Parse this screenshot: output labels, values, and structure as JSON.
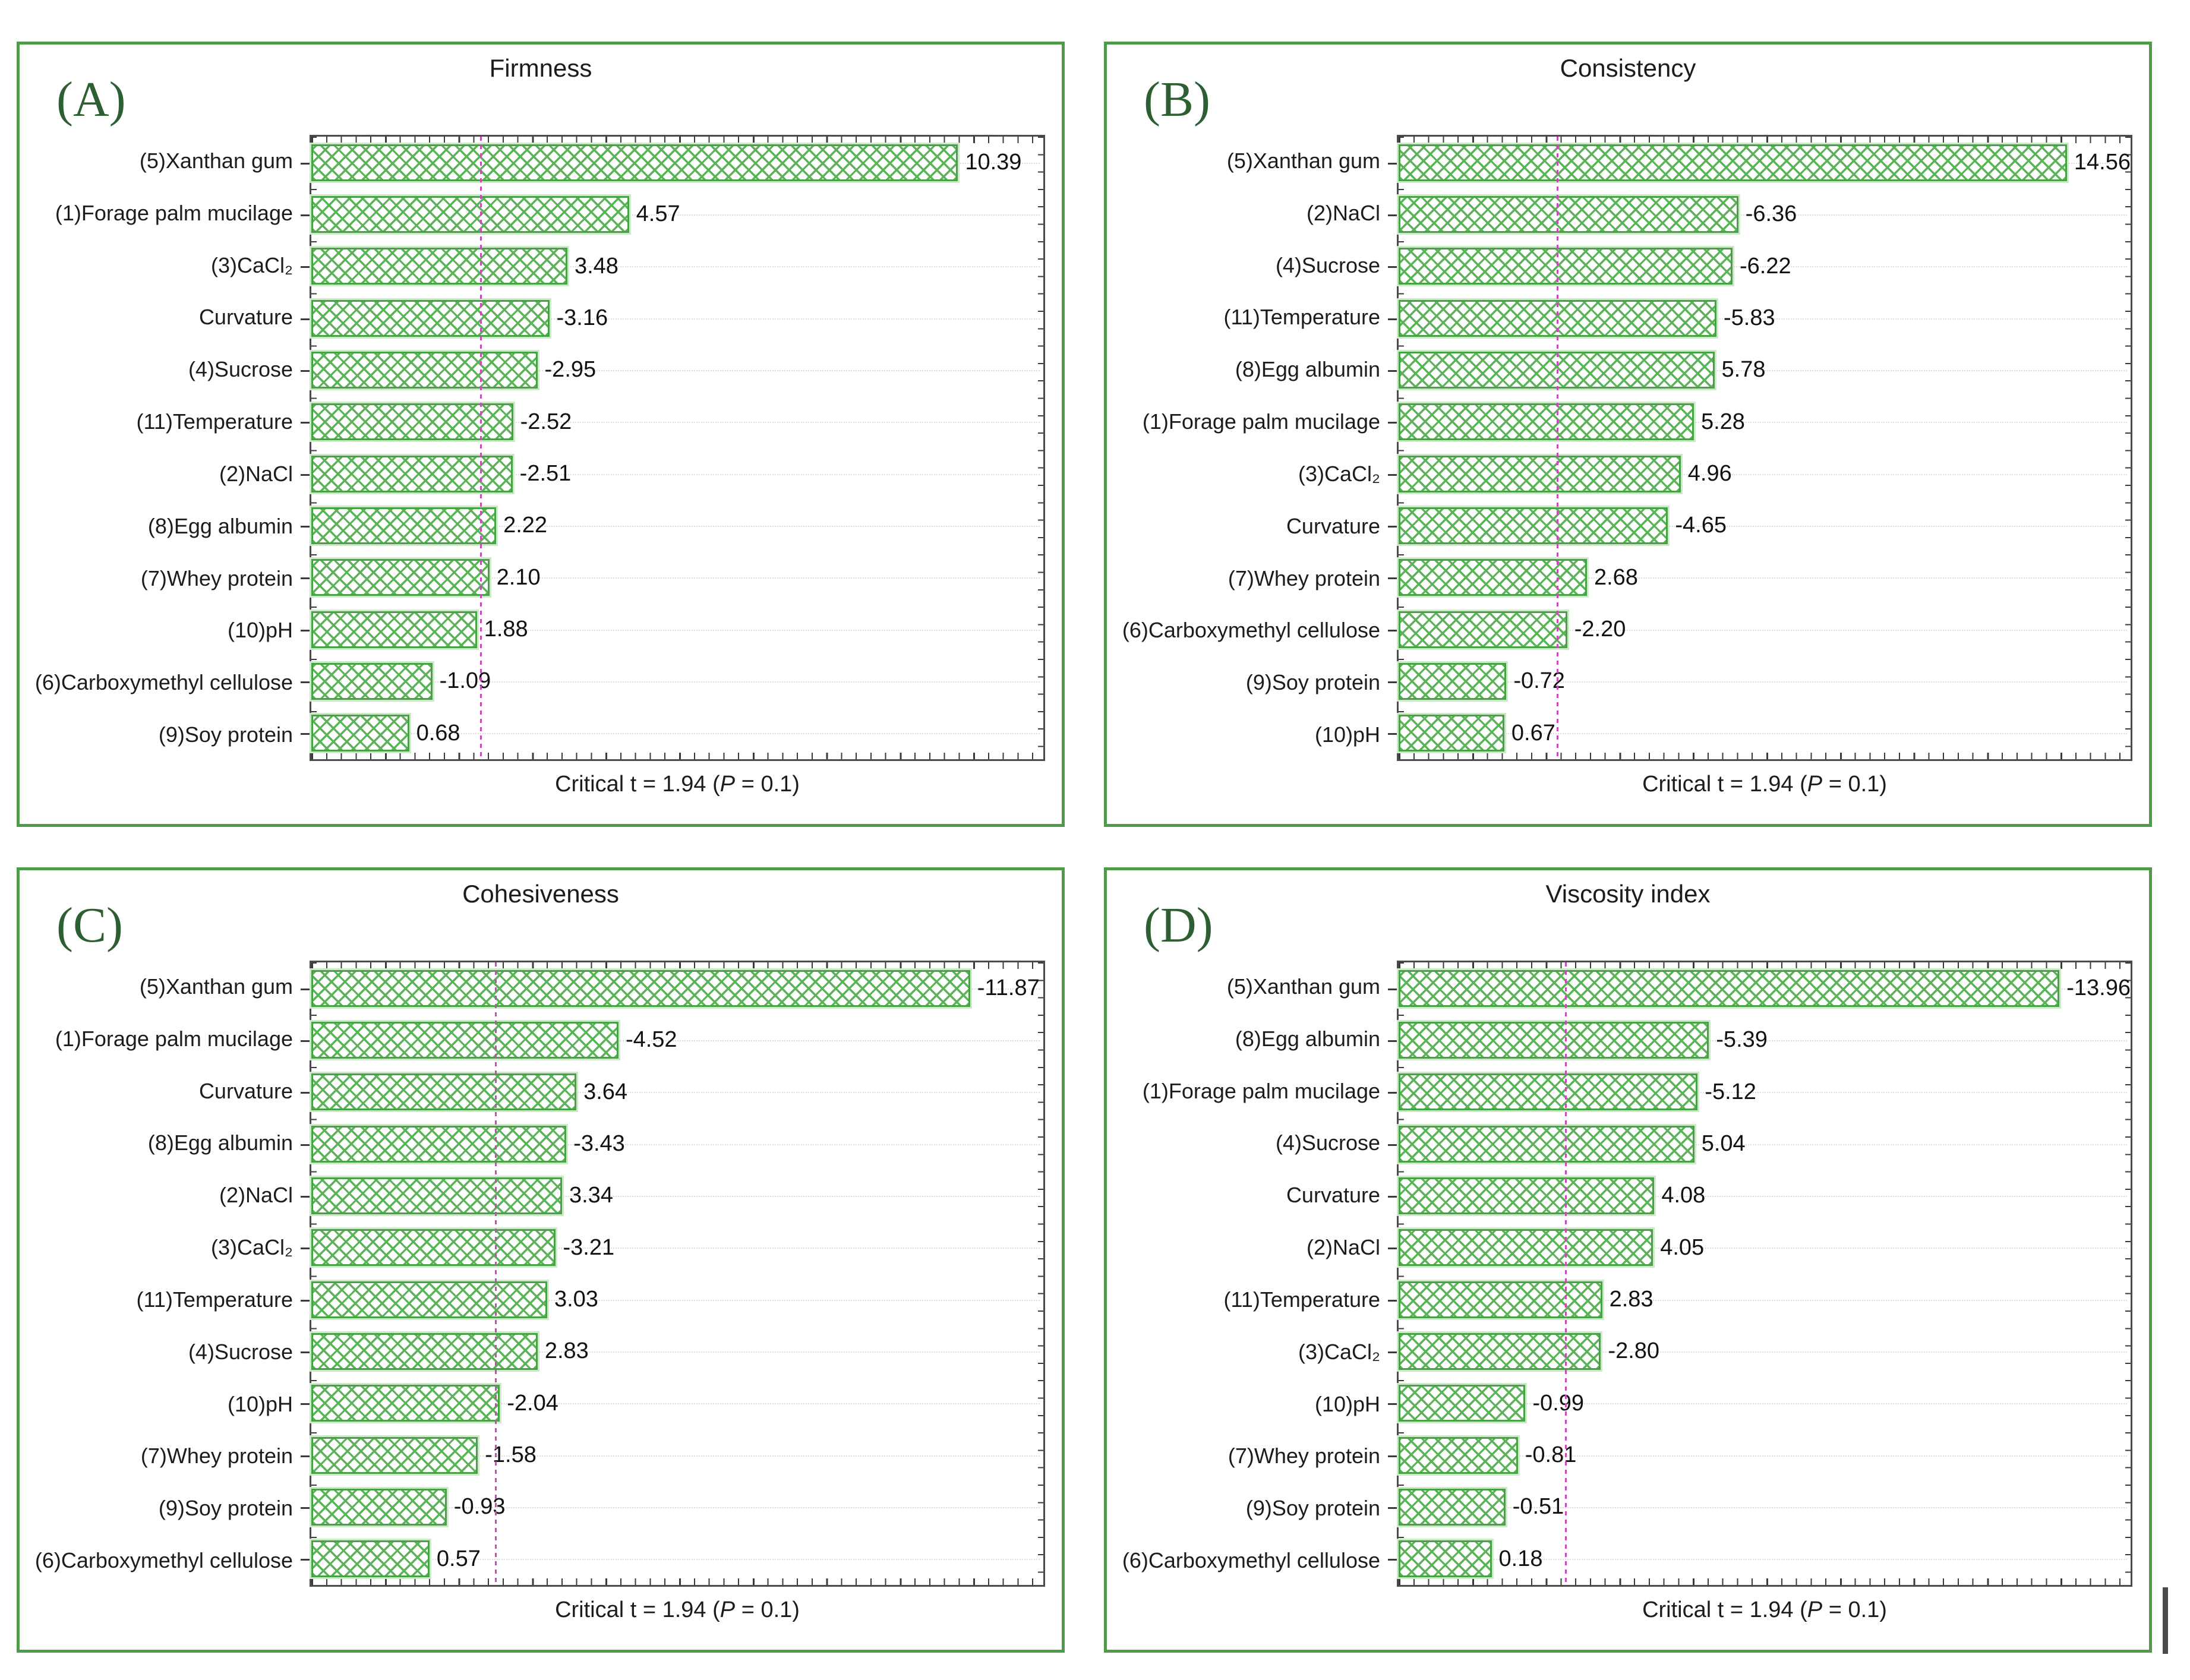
{
  "footer": {
    "pre": "Critical t = 1.94 (",
    "p": "P",
    "post": " = 0.1)"
  },
  "colors": {
    "panel_border": "#4f9b4a",
    "plot_border": "#4b4b4b",
    "bar_line": "#46a244",
    "bar_hatch": "#5ab357",
    "bar_halo": "#cde9c9",
    "critical_line": "#c44eb6",
    "letter": "#2e5f33",
    "gridline": "#dcdcdc",
    "text": "#1c1c1c"
  },
  "chart_data": [
    {
      "type": "bar",
      "orientation": "horizontal",
      "panel_letter": "(A)",
      "title": "Firmness",
      "xlabel": "",
      "ylabel": "",
      "xlim": [
        -1.05,
        11.9
      ],
      "x_tick_labels": "none",
      "grid": "dotted-horizontal",
      "legend": "none",
      "critical_t": 1.94,
      "caption": "Critical t = 1.94 (P = 0.1)",
      "categories": [
        "(5)Xanthan gum",
        "(1)Forage palm mucilage",
        "(3)CaCl₂",
        "Curvature",
        "(4)Sucrose",
        "(11)Temperature",
        "(2)NaCl",
        "(8)Egg albumin",
        "(7)Whey protein",
        "(10)pH",
        "(6)Carboxymethyl cellulose",
        "(9)Soy protein"
      ],
      "values": [
        10.39,
        4.57,
        3.48,
        -3.16,
        -2.95,
        -2.52,
        -2.51,
        2.22,
        2.1,
        1.88,
        -1.09,
        0.68
      ],
      "value_labels": [
        "10.39",
        "4.57",
        "3.48",
        "-3.16",
        "-2.95",
        "-2.52",
        "-2.51",
        "2.22",
        "2.10",
        "1.88",
        "-1.09",
        "0.68"
      ]
    },
    {
      "type": "bar",
      "orientation": "horizontal",
      "panel_letter": "(B)",
      "title": "Consistency",
      "xlabel": "",
      "ylabel": "",
      "xlim": [
        -1.9,
        15.9
      ],
      "x_tick_labels": "none",
      "grid": "dotted-horizontal",
      "legend": "none",
      "critical_t": 1.94,
      "caption": "Critical t = 1.94 (P = 0.1)",
      "categories": [
        "(5)Xanthan gum",
        "(2)NaCl",
        "(4)Sucrose",
        "(11)Temperature",
        "(8)Egg albumin",
        "(1)Forage palm mucilage",
        "(3)CaCl₂",
        "Curvature",
        "(7)Whey protein",
        "(6)Carboxymethyl cellulose",
        "(9)Soy protein",
        "(10)pH"
      ],
      "values": [
        14.56,
        -6.36,
        -6.22,
        -5.83,
        5.78,
        5.28,
        4.96,
        -4.65,
        2.68,
        -2.2,
        -0.72,
        0.67
      ],
      "value_labels": [
        "14.56",
        "-6.36",
        "-6.22",
        "-5.83",
        "5.78",
        "5.28",
        "4.96",
        "-4.65",
        "2.68",
        "-2.20",
        "-0.72",
        "0.67"
      ]
    },
    {
      "type": "bar",
      "orientation": "horizontal",
      "panel_letter": "(C)",
      "title": "Cohesiveness",
      "xlabel": "",
      "ylabel": "",
      "xlim": [
        -1.9,
        13.4
      ],
      "x_tick_labels": "none",
      "grid": "dotted-horizontal",
      "legend": "none",
      "critical_t": 1.94,
      "caption": "Critical t = 1.94 (P = 0.1)",
      "categories": [
        "(5)Xanthan gum",
        "(1)Forage palm mucilage",
        "Curvature",
        "(8)Egg albumin",
        "(2)NaCl",
        "(3)CaCl₂",
        "(11)Temperature",
        "(4)Sucrose",
        "(10)pH",
        "(7)Whey protein",
        "(9)Soy protein",
        "(6)Carboxymethyl cellulose"
      ],
      "values": [
        -11.87,
        -4.52,
        3.64,
        -3.43,
        3.34,
        -3.21,
        3.03,
        2.83,
        -2.04,
        -1.58,
        -0.93,
        0.57
      ],
      "value_labels": [
        "-11.87",
        "-4.52",
        "3.64",
        "-3.43",
        "3.34",
        "-3.21",
        "3.03",
        "2.83",
        "-2.04",
        "-1.58",
        "-0.93",
        "0.57"
      ]
    },
    {
      "type": "bar",
      "orientation": "horizontal",
      "panel_letter": "(D)",
      "title": "Viscosity index",
      "xlabel": "",
      "ylabel": "",
      "xlim": [
        -2.05,
        15.5
      ],
      "x_tick_labels": "none",
      "grid": "dotted-horizontal",
      "legend": "none",
      "critical_t": 1.94,
      "caption": "Critical t = 1.94 (P = 0.1)",
      "categories": [
        "(5)Xanthan gum",
        "(8)Egg albumin",
        "(1)Forage palm mucilage",
        "(4)Sucrose",
        "Curvature",
        "(2)NaCl",
        "(11)Temperature",
        "(3)CaCl₂",
        "(10)pH",
        "(7)Whey protein",
        "(9)Soy protein",
        "(6)Carboxymethyl cellulose"
      ],
      "values": [
        -13.96,
        -5.39,
        -5.12,
        5.04,
        4.08,
        4.05,
        2.83,
        -2.8,
        -0.99,
        -0.81,
        -0.51,
        0.18
      ],
      "value_labels": [
        "-13.96",
        "-5.39",
        "-5.12",
        "5.04",
        "4.08",
        "4.05",
        "2.83",
        "-2.80",
        "-0.99",
        "-0.81",
        "-0.51",
        "0.18"
      ]
    }
  ]
}
